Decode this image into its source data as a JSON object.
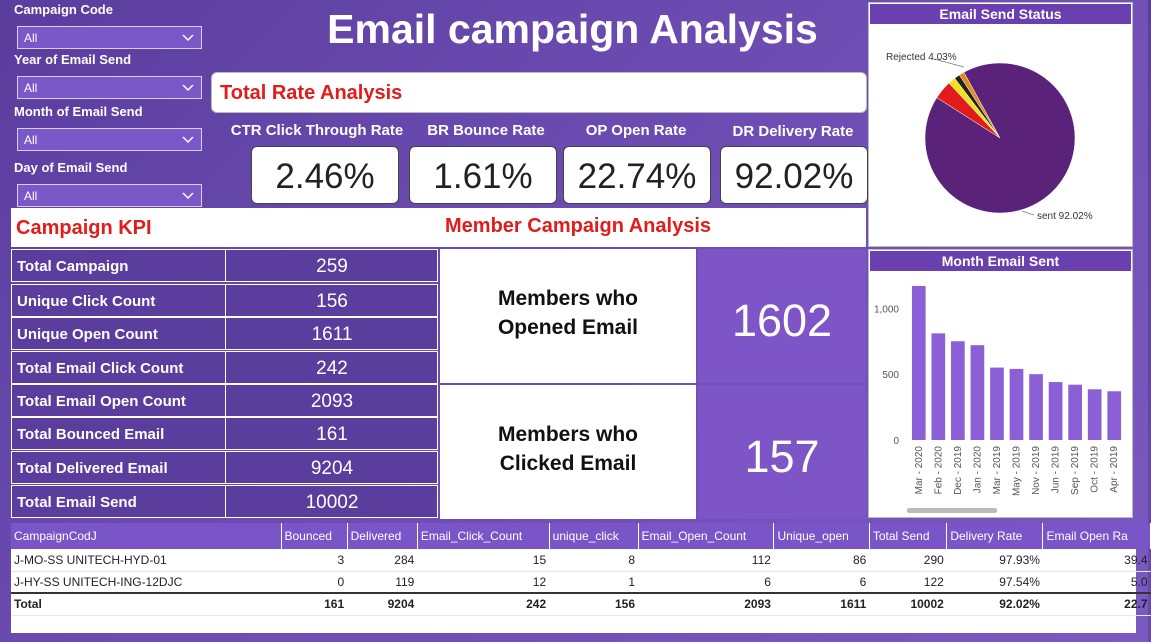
{
  "slicers": [
    {
      "label": "Campaign Code",
      "value": "All"
    },
    {
      "label": "Year of Email Send",
      "value": "All"
    },
    {
      "label": "Month of Email Send",
      "value": "All"
    },
    {
      "label": "Day of Email Send",
      "value": "All"
    }
  ],
  "title": "Email campaign Analysis",
  "rate_header": "Total Rate Analysis",
  "rates": [
    {
      "label": "CTR Click Through Rate",
      "value": "2.46%"
    },
    {
      "label": "BR Bounce Rate",
      "value": "1.61%"
    },
    {
      "label": "OP Open Rate",
      "value": "22.74%"
    },
    {
      "label": "DR Delivery Rate",
      "value": "92.02%"
    }
  ],
  "pie": {
    "title": "Email Send Status",
    "label_rejected": "Rejected 4.03%",
    "label_sent": "sent 92.02%"
  },
  "campaign_kpi": {
    "heading": "Campaign KPI",
    "member_heading": "Member Campaign Analysis",
    "rows": [
      {
        "label": "Total Campaign",
        "value": "259"
      },
      {
        "label": "Unique Click Count",
        "value": "156"
      },
      {
        "label": "Unique Open Count",
        "value": "1611"
      },
      {
        "label": "Total Email Click Count",
        "value": "242"
      },
      {
        "label": "Total Email Open Count",
        "value": "2093"
      },
      {
        "label": "Total Bounced Email",
        "value": "161"
      },
      {
        "label": "Total Delivered Email",
        "value": "9204"
      },
      {
        "label": "Total Email Send",
        "value": "10002"
      }
    ]
  },
  "members": {
    "opened_line1": "Members who",
    "opened_line2": "Opened Email",
    "opened_value": "1602",
    "clicked_line1": "Members who",
    "clicked_line2": "Clicked Email",
    "clicked_value": "157"
  },
  "chart_data": [
    {
      "type": "pie",
      "title": "Email Send Status",
      "slices": [
        {
          "name": "sent",
          "value": 92.02,
          "color": "#5a2379"
        },
        {
          "name": "Rejected",
          "value": 4.03,
          "color": "#e11b1b"
        },
        {
          "name": "",
          "value": 1.6,
          "color": "#f0e21b"
        },
        {
          "name": "",
          "value": 1.2,
          "color": "#222222"
        },
        {
          "name": "",
          "value": 1.15,
          "color": "#e58a1a"
        }
      ]
    },
    {
      "type": "bar",
      "title": "Month Email Sent",
      "categories": [
        "Mar - 2020",
        "Feb - 2020",
        "Dec - 2019",
        "Jan - 2020",
        "Mar - 2019",
        "May - 2019",
        "Nov - 2019",
        "Jun - 2019",
        "Sep - 2019",
        "Oct - 2019",
        "Apr - 2019"
      ],
      "values": [
        1170,
        810,
        750,
        720,
        550,
        540,
        500,
        440,
        420,
        385,
        370
      ],
      "ylim": [
        0,
        1200
      ],
      "yticks": [
        "0",
        "500",
        "1,000"
      ],
      "ytick_values": [
        0,
        500,
        1000
      ],
      "color": "#8b5fd6"
    }
  ],
  "table": {
    "columns": [
      "CampaignCodJ",
      "Bounced",
      "Delivered",
      "Email_Click_Count",
      "unique_click",
      "Email_Open_Count",
      "Unique_open",
      "Total Send",
      "Delivery Rate",
      "Email Open Ra"
    ],
    "rows": [
      [
        "J-MO-SS UNITECH-HYD-01",
        "3",
        "284",
        "15",
        "8",
        "112",
        "86",
        "290",
        "97.93%",
        "39.4"
      ],
      [
        "J-HY-SS UNITECH-ING-12DJC",
        "0",
        "119",
        "12",
        "1",
        "6",
        "6",
        "122",
        "97.54%",
        "5.0"
      ]
    ],
    "total": [
      "Total",
      "161",
      "9204",
      "242",
      "156",
      "2093",
      "1611",
      "10002",
      "92.02%",
      "22.7"
    ]
  }
}
